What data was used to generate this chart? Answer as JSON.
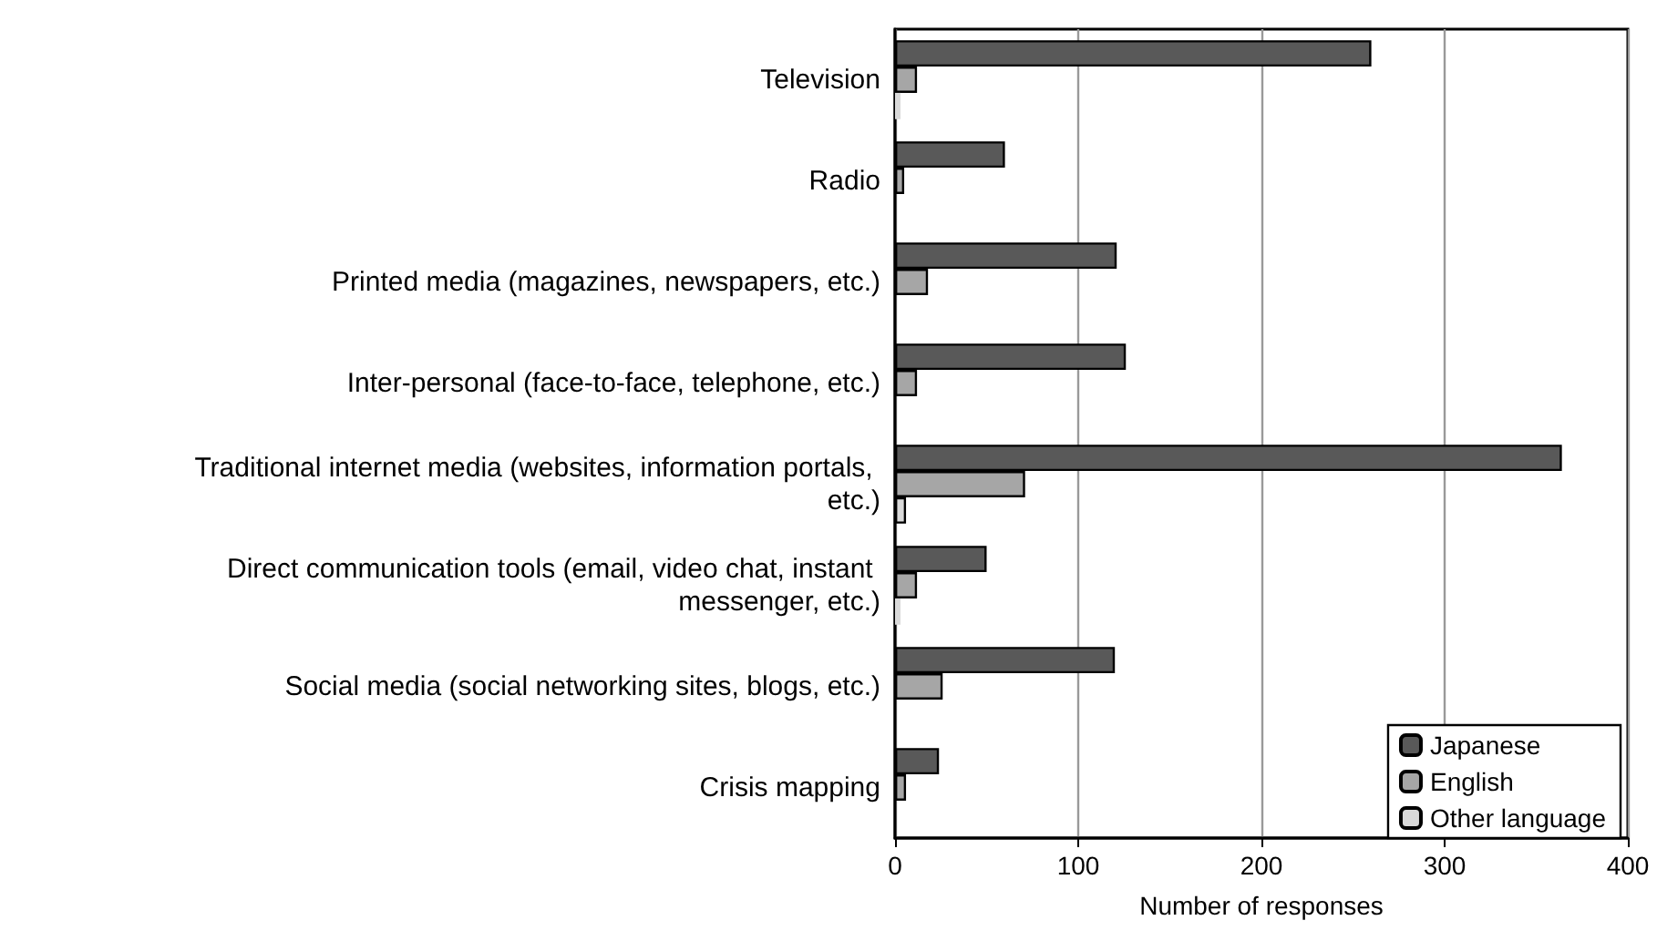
{
  "chart_data": {
    "type": "bar",
    "orientation": "horizontal",
    "xlabel": "Number of responses",
    "categories": [
      "Television",
      "Radio",
      "Printed media (magazines, newspapers, etc.)",
      "Inter-personal (face-to-face, telephone, etc.)",
      "Traditional internet media (websites, information portals, etc.)",
      "Direct communication tools (email, video chat, instant messenger, etc.)",
      "Social media (social networking sites, blogs, etc.)",
      "Crisis mapping"
    ],
    "series": [
      {
        "name": "Japanese",
        "color": "#595959",
        "values": [
          260,
          60,
          121,
          126,
          364,
          50,
          120,
          24
        ]
      },
      {
        "name": "English",
        "color": "#a6a6a6",
        "values": [
          12,
          5,
          18,
          12,
          71,
          12,
          26,
          6
        ]
      },
      {
        "name": "Other language",
        "color": "#d9d9d9",
        "values": [
          3,
          null,
          null,
          null,
          6,
          3,
          null,
          0
        ]
      }
    ],
    "xlim": [
      0,
      400
    ],
    "xticks": [
      0,
      100,
      200,
      300,
      400
    ],
    "grid": "x",
    "legend": "bottom right"
  }
}
